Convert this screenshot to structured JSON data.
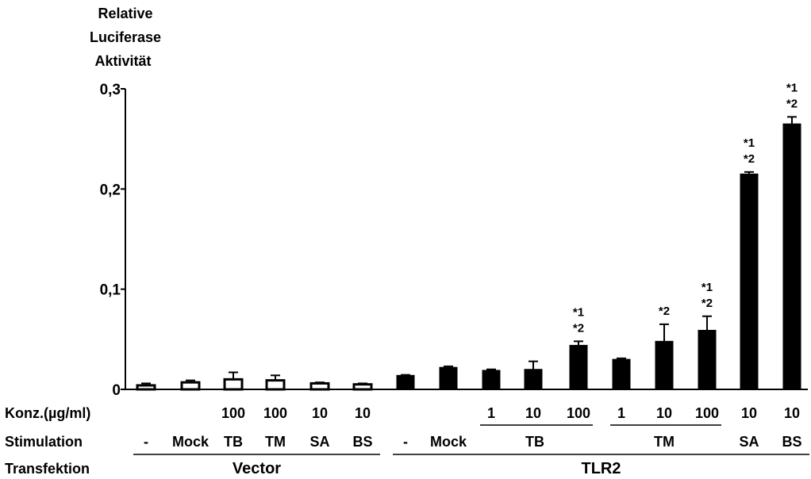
{
  "chart_data": {
    "type": "bar",
    "ylabel": [
      "Relative",
      "Luciferase",
      "Aktivität"
    ],
    "ylim": [
      0,
      0.3
    ],
    "yticks": [
      {
        "value": 0,
        "label": "0"
      },
      {
        "value": 0.1,
        "label": "0,1"
      },
      {
        "value": 0.2,
        "label": "0,2"
      },
      {
        "value": 0.3,
        "label": "0,3"
      }
    ],
    "row_labels": {
      "konz": "Konz.(µg/ml)",
      "stimulation": "Stimulation",
      "transfektion": "Transfektion"
    },
    "bars": [
      {
        "transfection": "Vector",
        "stimulation": "-",
        "konz": "",
        "value": 0.004,
        "error": 0.002,
        "fill": "white",
        "sig": []
      },
      {
        "transfection": "Vector",
        "stimulation": "Mock",
        "konz": "",
        "value": 0.007,
        "error": 0.002,
        "fill": "white",
        "sig": []
      },
      {
        "transfection": "Vector",
        "stimulation": "TB",
        "konz": "100",
        "value": 0.01,
        "error": 0.007,
        "fill": "white",
        "sig": []
      },
      {
        "transfection": "Vector",
        "stimulation": "TM",
        "konz": "100",
        "value": 0.009,
        "error": 0.005,
        "fill": "white",
        "sig": []
      },
      {
        "transfection": "Vector",
        "stimulation": "SA",
        "konz": "10",
        "value": 0.006,
        "error": 0.001,
        "fill": "white",
        "sig": []
      },
      {
        "transfection": "Vector",
        "stimulation": "BS",
        "konz": "10",
        "value": 0.005,
        "error": 0.001,
        "fill": "white",
        "sig": []
      },
      {
        "transfection": "TLR2",
        "stimulation": "-",
        "konz": "",
        "value": 0.014,
        "error": 0.0005,
        "fill": "black",
        "sig": []
      },
      {
        "transfection": "TLR2",
        "stimulation": "Mock",
        "konz": "",
        "value": 0.022,
        "error": 0.001,
        "fill": "black",
        "sig": []
      },
      {
        "transfection": "TLR2",
        "stimulation": "TB",
        "konz": "1",
        "value": 0.019,
        "error": 0.001,
        "fill": "black",
        "sig": []
      },
      {
        "transfection": "TLR2",
        "stimulation": "TB",
        "konz": "10",
        "value": 0.02,
        "error": 0.008,
        "fill": "black",
        "sig": []
      },
      {
        "transfection": "TLR2",
        "stimulation": "TB",
        "konz": "100",
        "value": 0.044,
        "error": 0.004,
        "fill": "black",
        "sig": [
          "*1",
          "*2"
        ]
      },
      {
        "transfection": "TLR2",
        "stimulation": "TM",
        "konz": "1",
        "value": 0.03,
        "error": 0.001,
        "fill": "black",
        "sig": []
      },
      {
        "transfection": "TLR2",
        "stimulation": "TM",
        "konz": "10",
        "value": 0.048,
        "error": 0.017,
        "fill": "black",
        "sig": [
          "*2"
        ]
      },
      {
        "transfection": "TLR2",
        "stimulation": "TM",
        "konz": "100",
        "value": 0.059,
        "error": 0.014,
        "fill": "black",
        "sig": [
          "*1",
          "*2"
        ]
      },
      {
        "transfection": "TLR2",
        "stimulation": "SA",
        "konz": "10",
        "value": 0.215,
        "error": 0.002,
        "fill": "black",
        "sig": [
          "*1",
          "*2"
        ]
      },
      {
        "transfection": "TLR2",
        "stimulation": "BS",
        "konz": "10",
        "value": 0.265,
        "error": 0.007,
        "fill": "black",
        "sig": [
          "*1",
          "*2"
        ]
      }
    ],
    "stimulation_groups": [
      {
        "label": "TB",
        "bars": [
          8,
          10
        ]
      },
      {
        "label": "TM",
        "bars": [
          11,
          13
        ]
      }
    ],
    "transfection_groups": [
      {
        "label": "Vector",
        "bars": [
          0,
          5
        ]
      },
      {
        "label": "TLR2",
        "bars": [
          6,
          15
        ]
      }
    ]
  }
}
